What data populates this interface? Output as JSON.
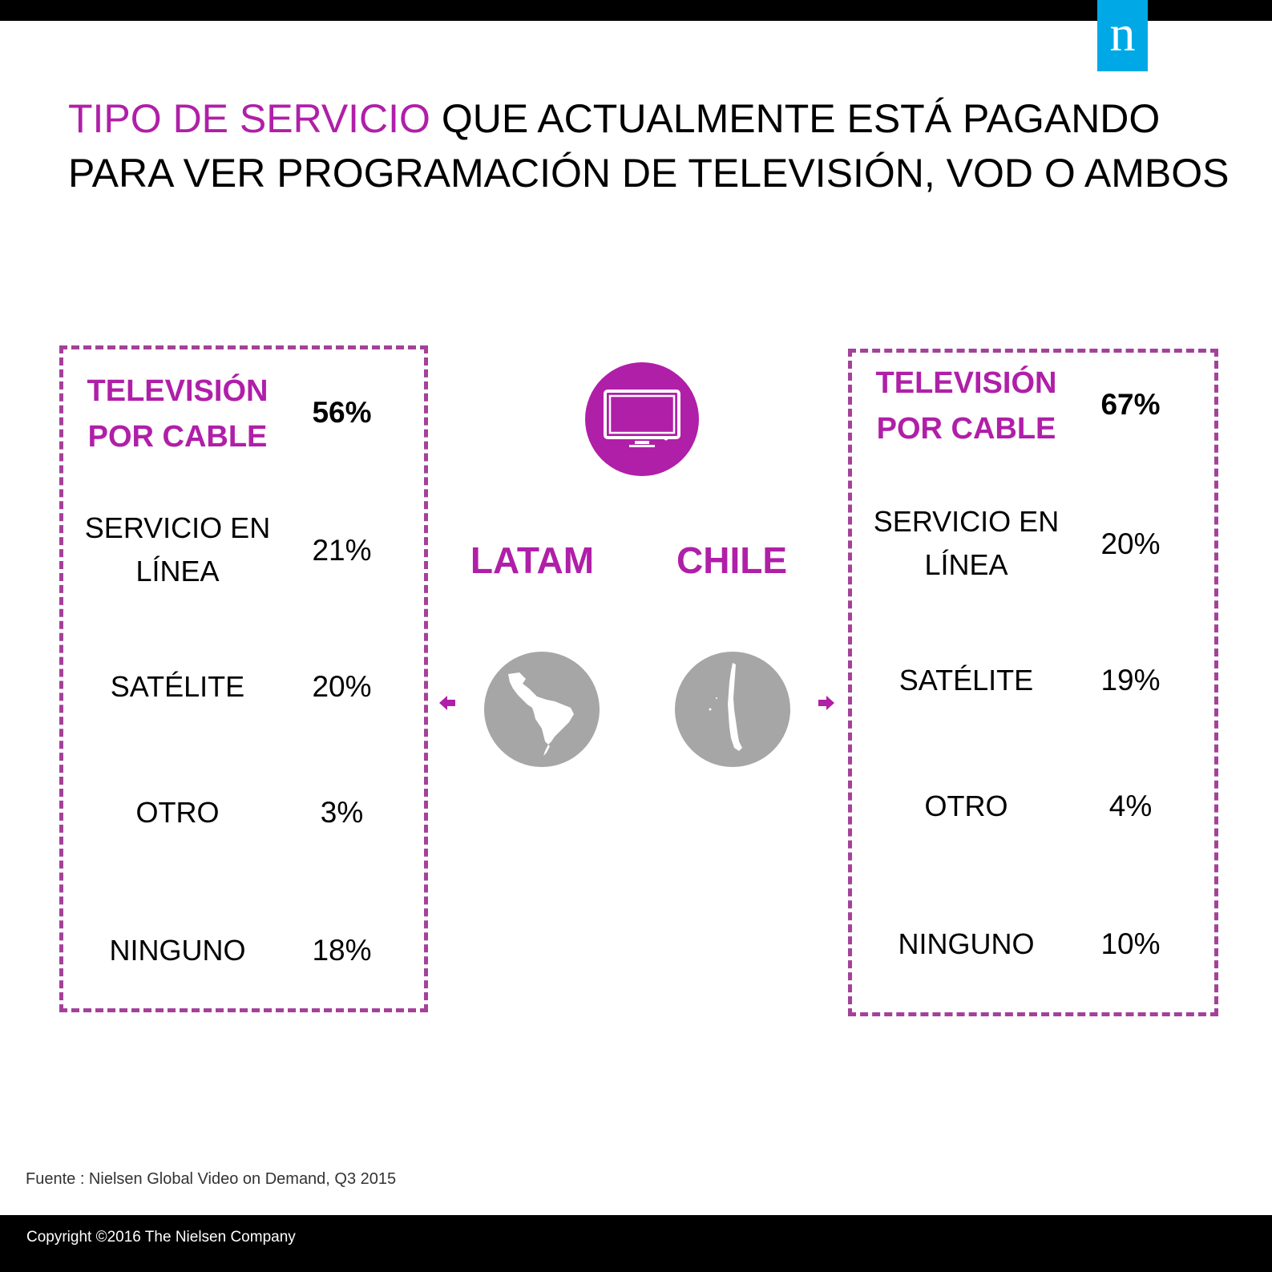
{
  "logo": {
    "letter": "n",
    "color": "#00a9e6"
  },
  "title": {
    "accent": "TIPO DE SERVICIO",
    "rest_line1": " QUE ACTUALMENTE ESTÁ PAGANDO",
    "line2": "PARA VER PROGRAMACIÓN DE TELEVISIÓN, VOD O AMBOS"
  },
  "accent_color": "#b01fa8",
  "latam": {
    "label": "LATAM",
    "rows": [
      {
        "label_l1": "TELEVISIÓN",
        "label_l2": "POR CABLE",
        "value": "56%"
      },
      {
        "label_l1": "SERVICIO EN",
        "label_l2": "LÍNEA",
        "value": "21%"
      },
      {
        "label_l1": "SATÉLITE",
        "value": "20%"
      },
      {
        "label_l1": "OTRO",
        "value": "3%"
      },
      {
        "label_l1": "NINGUNO",
        "value": "18%"
      }
    ]
  },
  "chile": {
    "label": "CHILE",
    "rows": [
      {
        "label_l1": "TELEVISIÓN",
        "label_l2": "POR CABLE",
        "value": "67%"
      },
      {
        "label_l1": "SERVICIO EN",
        "label_l2": "LÍNEA",
        "value": "20%"
      },
      {
        "label_l1": "SATÉLITE",
        "value": "19%"
      },
      {
        "label_l1": "OTRO",
        "value": "4%"
      },
      {
        "label_l1": "NINGUNO",
        "value": "10%"
      }
    ]
  },
  "icons": {
    "tv": "television-icon",
    "latam_map": "latin-america-map-icon",
    "chile_map": "chile-map-icon",
    "arrow_left": "arrow-left-icon",
    "arrow_right": "arrow-right-icon"
  },
  "source": "Fuente : Nielsen Global Video on Demand, Q3 2015",
  "copyright": "Copyright ©2016 The Nielsen Company"
}
